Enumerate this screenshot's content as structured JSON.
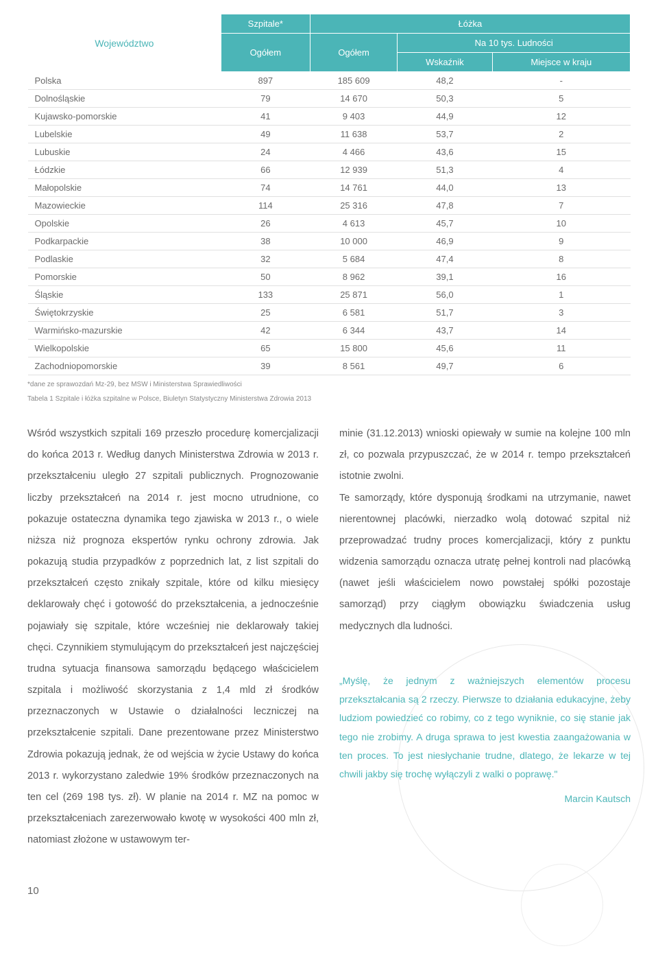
{
  "table": {
    "headers": {
      "wojewodztwo": "Województwo",
      "szpitale": "Szpitale*",
      "lozka": "Łóżka",
      "ogolem1": "Ogółem",
      "ogolem2": "Ogółem",
      "na10": "Na 10 tys. Ludności",
      "wskaznik": "Wskaźnik",
      "miejsce": "Miejsce w kraju"
    },
    "rows": [
      {
        "name": "Polska",
        "c1": "897",
        "c2": "185 609",
        "c3": "48,2",
        "c4": "-"
      },
      {
        "name": "Dolnośląskie",
        "c1": "79",
        "c2": "14 670",
        "c3": "50,3",
        "c4": "5"
      },
      {
        "name": "Kujawsko-pomorskie",
        "c1": "41",
        "c2": "9 403",
        "c3": "44,9",
        "c4": "12"
      },
      {
        "name": "Lubelskie",
        "c1": "49",
        "c2": "11 638",
        "c3": "53,7",
        "c4": "2"
      },
      {
        "name": "Lubuskie",
        "c1": "24",
        "c2": "4 466",
        "c3": "43,6",
        "c4": "15"
      },
      {
        "name": "Łódzkie",
        "c1": "66",
        "c2": "12 939",
        "c3": "51,3",
        "c4": "4"
      },
      {
        "name": "Małopolskie",
        "c1": "74",
        "c2": "14 761",
        "c3": "44,0",
        "c4": "13"
      },
      {
        "name": "Mazowieckie",
        "c1": "114",
        "c2": "25 316",
        "c3": "47,8",
        "c4": "7"
      },
      {
        "name": "Opolskie",
        "c1": "26",
        "c2": "4 613",
        "c3": "45,7",
        "c4": "10"
      },
      {
        "name": "Podkarpackie",
        "c1": "38",
        "c2": "10 000",
        "c3": "46,9",
        "c4": "9"
      },
      {
        "name": "Podlaskie",
        "c1": "32",
        "c2": "5 684",
        "c3": "47,4",
        "c4": "8"
      },
      {
        "name": "Pomorskie",
        "c1": "50",
        "c2": "8 962",
        "c3": "39,1",
        "c4": "16"
      },
      {
        "name": "Śląskie",
        "c1": "133",
        "c2": "25 871",
        "c3": "56,0",
        "c4": "1"
      },
      {
        "name": "Świętokrzyskie",
        "c1": "25",
        "c2": "6 581",
        "c3": "51,7",
        "c4": "3"
      },
      {
        "name": "Warmińsko-mazurskie",
        "c1": "42",
        "c2": "6 344",
        "c3": "43,7",
        "c4": "14"
      },
      {
        "name": "Wielkopolskie",
        "c1": "65",
        "c2": "15 800",
        "c3": "45,6",
        "c4": "11"
      },
      {
        "name": "Zachodniopomorskie",
        "c1": "39",
        "c2": "8 561",
        "c3": "49,7",
        "c4": "6"
      }
    ],
    "note1": "*dane ze sprawozdań Mz-29, bez MSW i Ministerstwa Sprawiedliwości",
    "note2": "Tabela 1 Szpitale i łóżka szpitalne w Polsce, Biuletyn Statystyczny Ministerstwa Zdrowia 2013"
  },
  "body": {
    "left": "Wśród wszystkich szpitali 169 przeszło procedurę komercjalizacji do końca 2013 r. Według danych Ministerstwa Zdrowia w 2013 r. przekształceniu uległo 27 szpitali publicznych. Prognozowanie liczby przekształceń na 2014 r. jest mocno utrudnione, co pokazuje ostateczna dynamika tego zjawiska w 2013 r., o wiele niższa niż prognoza ekspertów rynku ochrony zdrowia. Jak pokazują studia przypadków z poprzednich lat, z list szpitali do przekształceń często znikały szpitale, które od kilku miesięcy deklarowały chęć i gotowość do przekształcenia, a jednocześnie pojawiały się szpitale, które wcześniej nie deklarowały takiej chęci. Czynnikiem stymulującym do przekształceń jest najczęściej trudna sytuacja finansowa samorządu będącego właścicielem szpitala i możliwość skorzystania z 1,4 mld zł środków przeznaczonych w Ustawie o działalności leczniczej na przekształcenie szpitali. Dane prezentowane przez Ministerstwo Zdrowia pokazują jednak, że od wejścia w życie Ustawy do końca 2013 r. wykorzystano zaledwie 19% środków przeznaczonych na ten cel (269 198  tys. zł). W planie na 2014 r. MZ na pomoc w przekształceniach zarezerwowało kwotę w wysokości 400 mln zł, natomiast złożone w ustawowym ter-",
    "right_top": "minie (31.12.2013) wnioski opiewały w sumie na kolejne 100 mln zł, co pozwala przypuszczać, że w 2014 r. tempo przekształceń istotnie zwolni.",
    "right_mid": "Te samorządy, które dysponują środkami na utrzymanie, nawet nierentownej placówki, nierzadko wolą dotować szpital niż przeprowadzać trudny proces komercjalizacji, który z punktu widzenia samorządu oznacza utratę pełnej kontroli nad placówką (nawet jeśli właścicielem nowo powstałej spółki pozostaje samorząd) przy ciągłym obowiązku świadczenia usług medycznych dla ludności."
  },
  "quote": {
    "text": "„Myślę, że jednym z ważniejszych elementów procesu przekształcania są 2 rzeczy. Pierwsze to działania edukacyjne, żeby ludziom powiedzieć co robimy, co z tego wyniknie, co się stanie jak tego nie zrobimy. A druga sprawa to jest kwestia zaangażowania w ten proces. To jest niesłychanie trudne, dlatego, że lekarze w tej chwili jakby się trochę wyłączyli z walki o poprawę.\"",
    "author": "Marcin Kautsch"
  },
  "page": "10"
}
